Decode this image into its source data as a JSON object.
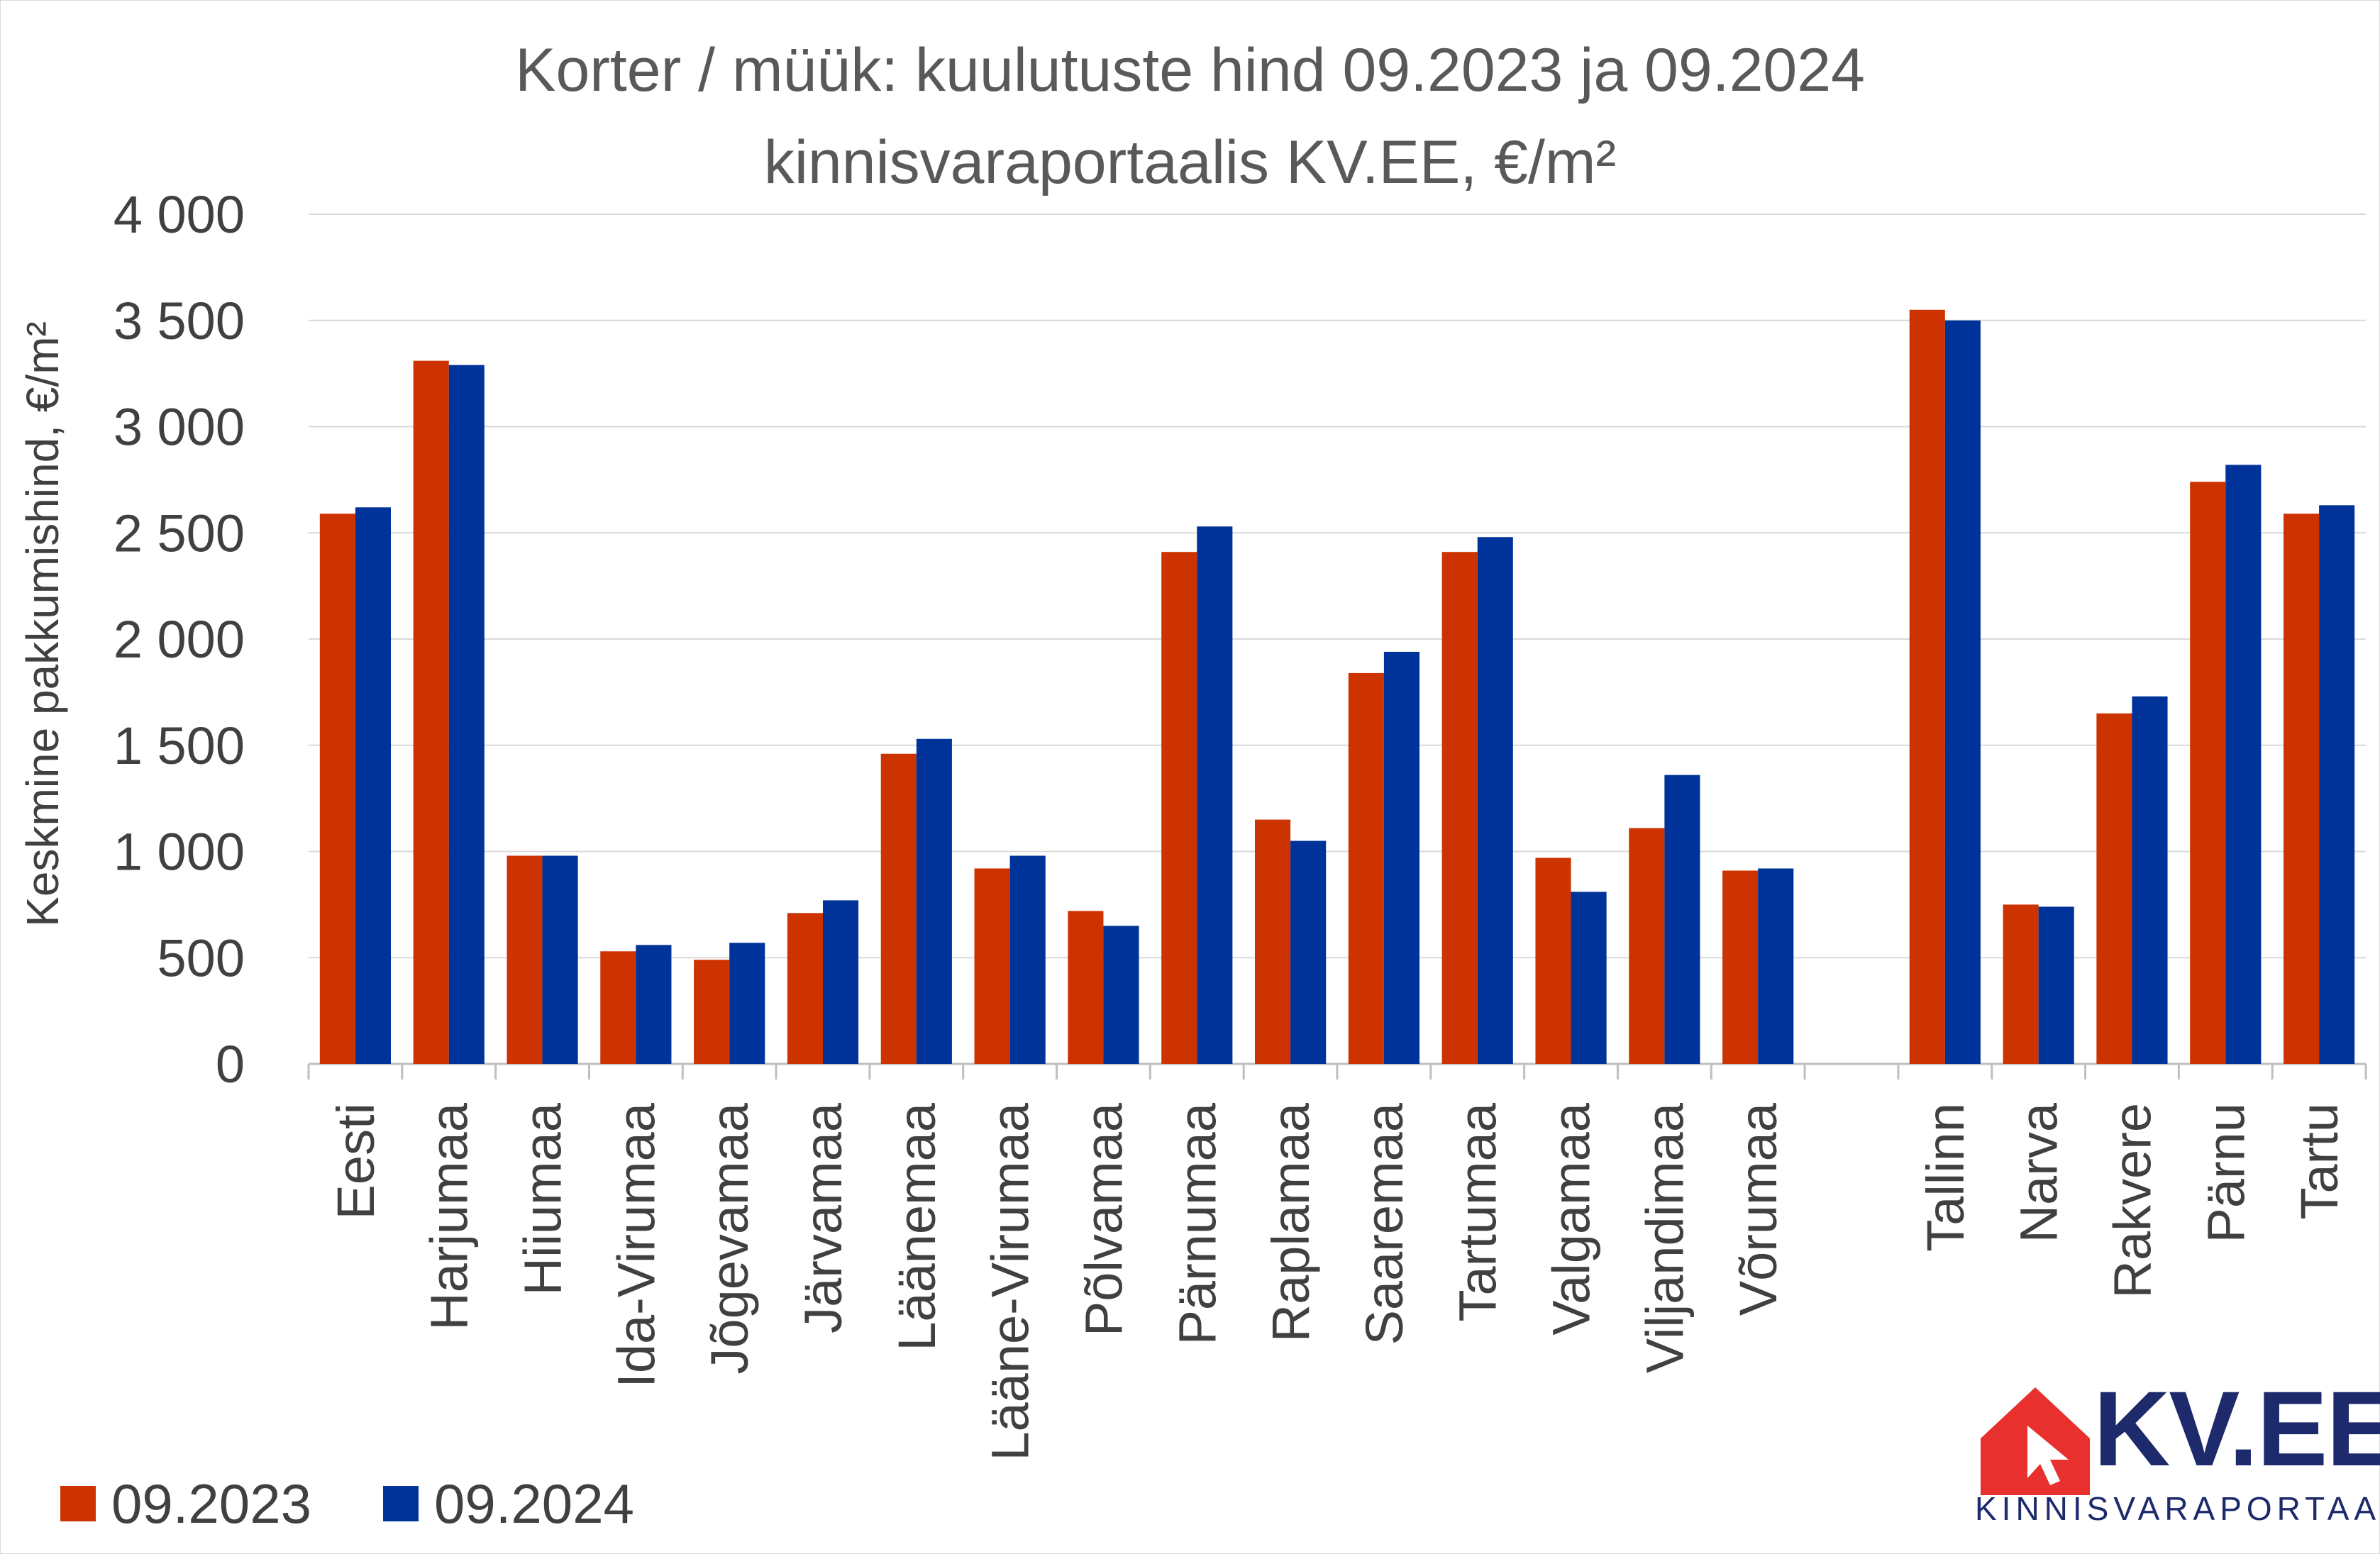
{
  "chart_data": {
    "type": "bar",
    "title": "Korter / müük: kuulutuste hind 09.2023 ja 09.2024",
    "subtitle": "kinnisvaraportaalis KV.EE, €/m²",
    "ylabel": "Keskmine pakkumishind, €/m²",
    "xlabel": "",
    "ylim": [
      0,
      4000
    ],
    "yticks": [
      0,
      500,
      1000,
      1500,
      2000,
      2500,
      3000,
      3500,
      4000
    ],
    "ytick_labels": [
      "0",
      "500",
      "1 000",
      "1 500",
      "2 000",
      "2 500",
      "3 000",
      "3 500",
      "4 000"
    ],
    "grid": true,
    "legend_position": "bottom-left",
    "categories": [
      "Eesti",
      "Harjumaa",
      "Hiiumaa",
      "Ida-Virumaa",
      "Jõgevamaa",
      "Järvamaa",
      "Läänemaa",
      "Lääne-Virumaa",
      "Põlvamaa",
      "Pärnumaa",
      "Raplamaa",
      "Saaremaa",
      "Tartumaa",
      "Valgamaa",
      "Viljandimaa",
      "Võrumaa",
      "",
      "Tallinn",
      "Narva",
      "Rakvere",
      "Pärnu",
      "Tartu"
    ],
    "series": [
      {
        "name": "09.2023",
        "color": "#cc3300",
        "values": [
          2590,
          3310,
          980,
          530,
          490,
          710,
          1460,
          920,
          720,
          2410,
          1150,
          1840,
          2410,
          970,
          1110,
          910,
          null,
          3550,
          750,
          1650,
          2740,
          2590
        ]
      },
      {
        "name": "09.2024",
        "color": "#003399",
        "values": [
          2620,
          3290,
          980,
          560,
          570,
          770,
          1530,
          980,
          650,
          2530,
          1050,
          1940,
          2480,
          810,
          1360,
          920,
          null,
          3500,
          740,
          1730,
          2820,
          2630
        ]
      }
    ]
  },
  "logo": {
    "text": "KV.EE",
    "subtext": "KINNISVARAPORTAAL",
    "colors": {
      "house": "#e8312f",
      "text": "#1d2a6b"
    }
  }
}
